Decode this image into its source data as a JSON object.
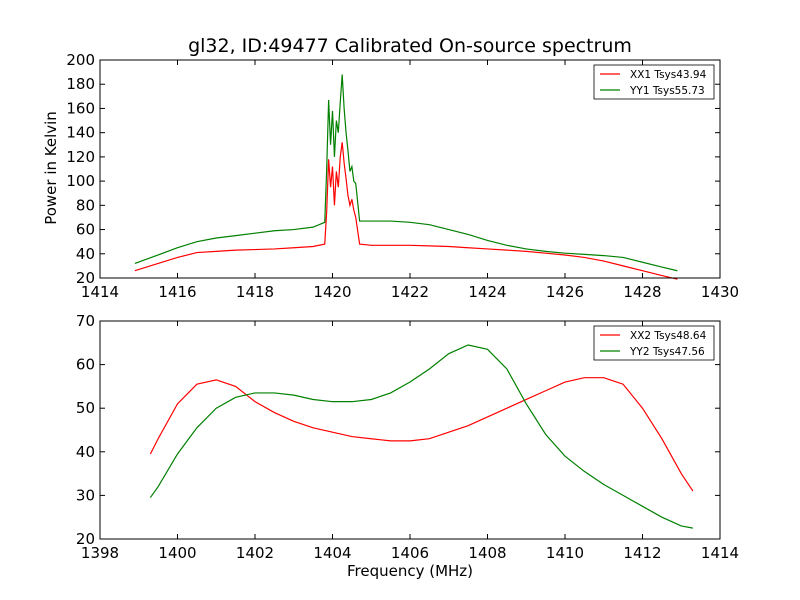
{
  "chart_data": [
    {
      "type": "line",
      "title": "gl32, ID:49477 Calibrated On-source spectrum",
      "xlabel": "",
      "ylabel": "Power in Kelvin",
      "xlim": [
        1414,
        1430
      ],
      "ylim": [
        20,
        200
      ],
      "xticks": [
        "1414",
        "1416",
        "1418",
        "1420",
        "1422",
        "1424",
        "1426",
        "1428",
        "1430"
      ],
      "yticks": [
        "20",
        "40",
        "60",
        "80",
        "100",
        "120",
        "140",
        "160",
        "180",
        "200"
      ],
      "grid": false,
      "legend_position": "top-right",
      "series": [
        {
          "name": "XX1 Tsys43.94",
          "color": "#ff0000",
          "x": [
            1414.9,
            1415.5,
            1416.0,
            1416.5,
            1417.0,
            1417.5,
            1418.0,
            1418.5,
            1419.0,
            1419.5,
            1419.8,
            1419.85,
            1419.9,
            1419.95,
            1420.0,
            1420.05,
            1420.1,
            1420.15,
            1420.2,
            1420.25,
            1420.3,
            1420.35,
            1420.4,
            1420.45,
            1420.5,
            1420.55,
            1420.6,
            1420.7,
            1421.0,
            1421.5,
            1422.0,
            1422.5,
            1423.0,
            1423.5,
            1424.0,
            1424.5,
            1425.0,
            1425.5,
            1426.0,
            1426.5,
            1427.0,
            1427.5,
            1428.0,
            1428.5,
            1428.9
          ],
          "y": [
            26,
            32,
            37,
            41,
            42,
            43,
            43.5,
            44,
            45,
            46,
            48,
            75,
            118,
            95,
            112,
            80,
            108,
            95,
            120,
            132,
            115,
            102,
            88,
            80,
            85,
            76,
            70,
            48,
            47,
            47,
            47,
            46.5,
            46,
            45,
            44,
            43,
            42,
            40.5,
            39,
            37,
            34,
            30,
            26,
            22,
            19
          ]
        },
        {
          "name": "YY1 Tsys55.73",
          "color": "#008000",
          "x": [
            1414.9,
            1415.5,
            1416.0,
            1416.5,
            1417.0,
            1417.5,
            1418.0,
            1418.5,
            1419.0,
            1419.5,
            1419.8,
            1419.85,
            1419.9,
            1419.95,
            1420.0,
            1420.05,
            1420.1,
            1420.15,
            1420.2,
            1420.25,
            1420.3,
            1420.35,
            1420.4,
            1420.45,
            1420.5,
            1420.55,
            1420.6,
            1420.7,
            1421.0,
            1421.5,
            1422.0,
            1422.5,
            1423.0,
            1423.5,
            1424.0,
            1424.5,
            1425.0,
            1425.5,
            1426.0,
            1426.5,
            1427.0,
            1427.5,
            1428.0,
            1428.5,
            1428.9
          ],
          "y": [
            32,
            39,
            45,
            50,
            53,
            55,
            57,
            59,
            60,
            62,
            66,
            110,
            167,
            130,
            158,
            120,
            150,
            140,
            165,
            188,
            160,
            140,
            125,
            108,
            112,
            100,
            98,
            67,
            67,
            67,
            66,
            64,
            60,
            56,
            51,
            47,
            44,
            42,
            40.5,
            39.5,
            38.5,
            37,
            33,
            29,
            26
          ]
        }
      ]
    },
    {
      "type": "line",
      "title": "",
      "xlabel": "Frequency (MHz)",
      "ylabel": "",
      "xlim": [
        1398,
        1414
      ],
      "ylim": [
        20,
        70
      ],
      "xticks": [
        "1398",
        "1400",
        "1402",
        "1404",
        "1406",
        "1408",
        "1410",
        "1412",
        "1414"
      ],
      "yticks": [
        "20",
        "30",
        "40",
        "50",
        "60",
        "70"
      ],
      "grid": false,
      "legend_position": "top-right",
      "series": [
        {
          "name": "XX2 Tsys48.64",
          "color": "#ff0000",
          "x": [
            1399.3,
            1399.5,
            1400.0,
            1400.5,
            1401.0,
            1401.5,
            1402.0,
            1402.5,
            1403.0,
            1403.5,
            1404.0,
            1404.5,
            1405.0,
            1405.5,
            1406.0,
            1406.5,
            1407.0,
            1407.5,
            1408.0,
            1408.5,
            1409.0,
            1409.5,
            1410.0,
            1410.5,
            1411.0,
            1411.5,
            1412.0,
            1412.5,
            1413.0,
            1413.3
          ],
          "y": [
            39.5,
            43,
            51,
            55.5,
            56.5,
            55,
            51.5,
            49,
            47,
            45.5,
            44.5,
            43.5,
            43,
            42.5,
            42.5,
            43,
            44.5,
            46,
            48,
            50,
            52,
            54,
            56,
            57,
            57,
            55.5,
            50,
            43,
            35,
            31
          ]
        },
        {
          "name": "YY2 Tsys47.56",
          "color": "#008000",
          "x": [
            1399.3,
            1399.5,
            1400.0,
            1400.5,
            1401.0,
            1401.5,
            1402.0,
            1402.5,
            1403.0,
            1403.5,
            1404.0,
            1404.5,
            1405.0,
            1405.5,
            1406.0,
            1406.5,
            1407.0,
            1407.5,
            1408.0,
            1408.5,
            1409.0,
            1409.5,
            1410.0,
            1410.5,
            1411.0,
            1411.5,
            1412.0,
            1412.5,
            1413.0,
            1413.3
          ],
          "y": [
            29.5,
            32,
            39.5,
            45.5,
            50,
            52.5,
            53.5,
            53.5,
            53,
            52,
            51.5,
            51.5,
            52,
            53.5,
            56,
            59,
            62.5,
            64.5,
            63.5,
            59,
            51,
            44,
            39,
            35.5,
            32.5,
            30,
            27.5,
            25,
            23,
            22.5
          ]
        }
      ]
    }
  ]
}
